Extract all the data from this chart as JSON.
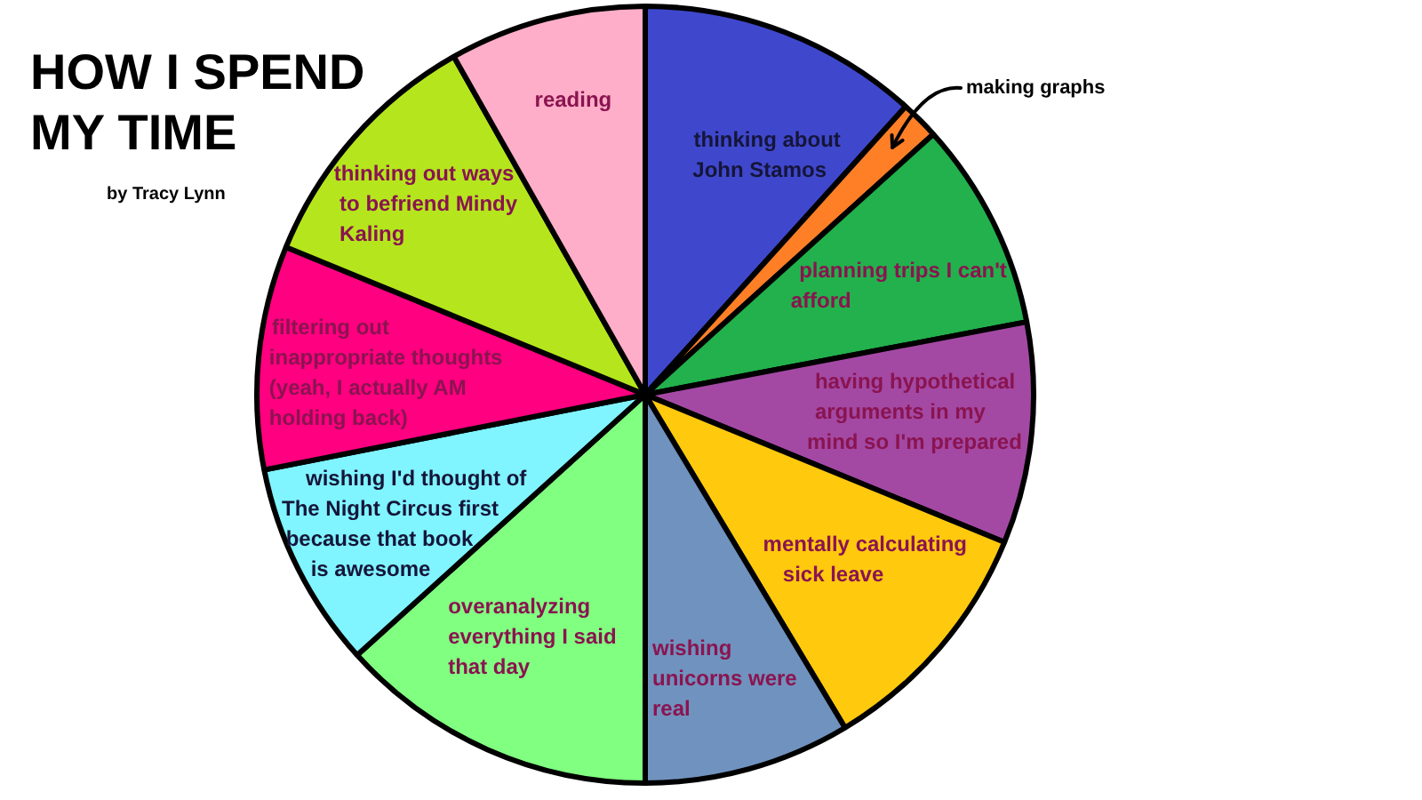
{
  "chart_data": {
    "type": "pie",
    "title": "HOW I SPEND MY TIME",
    "subtitle": "by Tracy Lynn",
    "categories": [
      "thinking about John Stamos",
      "making graphs",
      "planning trips I can't afford",
      "having hypothetical arguments in my mind so I'm prepared",
      "mentally calculating sick leave",
      "wishing unicorns were real",
      "overanalyzing everything I said that day",
      "wishing I'd thought of The Night Circus first because that book is awesome",
      "filtering out inappropriate thoughts (yeah, I actually AM holding back)",
      "thinking out ways to befriend Mindy Kaling",
      "reading"
    ],
    "values": [
      11.7,
      1.6,
      8.7,
      9.2,
      10.2,
      8.6,
      13.3,
      8.6,
      9.3,
      10.6,
      8.2
    ],
    "colors": [
      "#3f48cc",
      "#ff7f27",
      "#22b14c",
      "#a349a4",
      "#ffc90e",
      "#7092be",
      "#80ff80",
      "#80f4ff",
      "#ff0080",
      "#b5e61d",
      "#ffaec9"
    ]
  }
}
